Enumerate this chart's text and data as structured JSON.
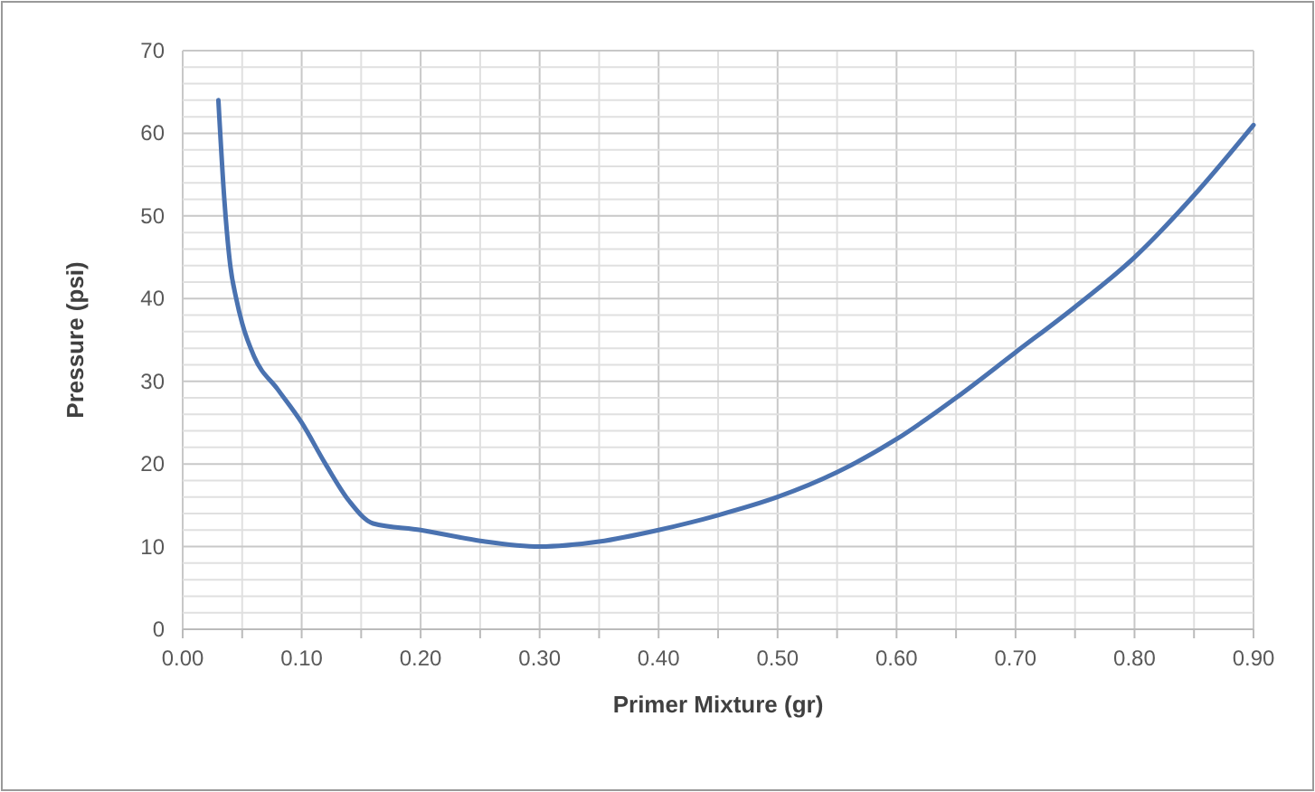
{
  "chart_data": {
    "type": "line",
    "xlabel": "Primer Mixture (gr)",
    "ylabel": "Pressure (psi)",
    "series": [
      {
        "color": "#4a72b0",
        "x": [
          0.03,
          0.035,
          0.04,
          0.045,
          0.05,
          0.06,
          0.08,
          0.1,
          0.12,
          0.14,
          0.16,
          0.2,
          0.25,
          0.3,
          0.35,
          0.4,
          0.45,
          0.5,
          0.55,
          0.6,
          0.65,
          0.7,
          0.75,
          0.8,
          0.85,
          0.9
        ],
        "values": [
          64,
          52,
          44,
          40,
          37,
          33,
          29,
          25,
          20,
          15.5,
          12.8,
          12,
          10.7,
          10,
          10.6,
          12,
          13.8,
          16,
          19,
          23,
          28,
          33.5,
          39,
          45,
          52.5,
          61
        ]
      }
    ],
    "xlim": [
      0,
      0.9
    ],
    "xticks": [
      {
        "value": 0,
        "label": "0.00"
      },
      {
        "value": 0.05,
        "label": null
      },
      {
        "value": 0.1,
        "label": "0.10"
      },
      {
        "value": 0.15,
        "label": null
      },
      {
        "value": 0.2,
        "label": "0.20"
      },
      {
        "value": 0.25,
        "label": null
      },
      {
        "value": 0.3,
        "label": "0.30"
      },
      {
        "value": 0.35,
        "label": null
      },
      {
        "value": 0.4,
        "label": "0.40"
      },
      {
        "value": 0.45,
        "label": null
      },
      {
        "value": 0.5,
        "label": "0.50"
      },
      {
        "value": 0.55,
        "label": null
      },
      {
        "value": 0.6,
        "label": "0.60"
      },
      {
        "value": 0.65,
        "label": null
      },
      {
        "value": 0.7,
        "label": "0.70"
      },
      {
        "value": 0.75,
        "label": null
      },
      {
        "value": 0.8,
        "label": "0.80"
      },
      {
        "value": 0.85,
        "label": null
      },
      {
        "value": 0.9,
        "label": "0.90"
      }
    ],
    "ylim": [
      0,
      70
    ],
    "yticks": [
      0,
      {
        "value": 2,
        "label": null
      },
      {
        "value": 4,
        "label": null
      },
      {
        "value": 6,
        "label": null
      },
      {
        "value": 8,
        "label": null
      },
      10,
      {
        "value": 12,
        "label": null
      },
      {
        "value": 14,
        "label": null
      },
      {
        "value": 16,
        "label": null
      },
      {
        "value": 18,
        "label": null
      },
      20,
      {
        "value": 22,
        "label": null
      },
      {
        "value": 24,
        "label": null
      },
      {
        "value": 26,
        "label": null
      },
      {
        "value": 28,
        "label": null
      },
      30,
      {
        "value": 32,
        "label": null
      },
      {
        "value": 34,
        "label": null
      },
      {
        "value": 36,
        "label": null
      },
      {
        "value": 38,
        "label": null
      },
      40,
      {
        "value": 42,
        "label": null
      },
      {
        "value": 44,
        "label": null
      },
      {
        "value": 46,
        "label": null
      },
      {
        "value": 48,
        "label": null
      },
      50,
      {
        "value": 52,
        "label": null
      },
      {
        "value": 54,
        "label": null
      },
      {
        "value": 56,
        "label": null
      },
      {
        "value": 58,
        "label": null
      },
      60,
      {
        "value": 62,
        "label": null
      },
      {
        "value": 64,
        "label": null
      },
      {
        "value": 66,
        "label": null
      },
      {
        "value": 68,
        "label": null
      },
      70
    ],
    "grid": true,
    "marker": "none",
    "line_style": "solid"
  }
}
